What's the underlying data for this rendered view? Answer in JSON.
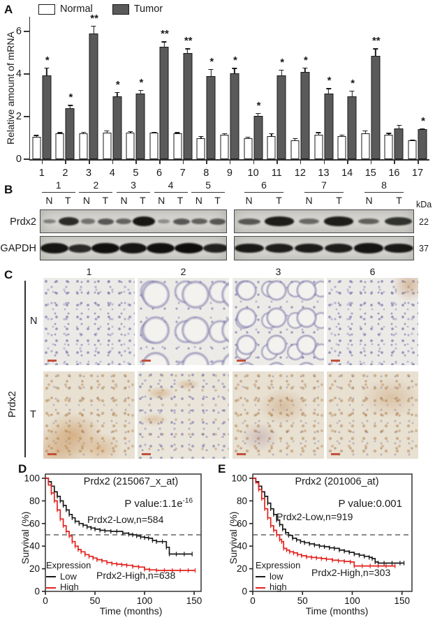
{
  "panel_a": {
    "label": "A",
    "legend": [
      {
        "label": "Normal",
        "fill": "#ffffff"
      },
      {
        "label": "Tumor",
        "fill": "#5a5a5a"
      }
    ],
    "ylabel": "Relative amount of mRNA"
  },
  "panel_b": {
    "label": "B",
    "lane_labels": [
      "N",
      "T"
    ],
    "row_labels": [
      "Prdx2",
      "GAPDH"
    ],
    "kda_header": "kDa",
    "kda_values": [
      "22",
      "37"
    ],
    "groups": [
      {
        "samples": [
          "1",
          "2",
          "3",
          "4",
          "5"
        ],
        "prdx2_band_intensity": [
          0.18,
          0.85,
          0.3,
          0.5,
          0.42,
          1.0,
          0.1,
          0.5,
          0.45,
          0.5
        ],
        "gapdh_band_intensity": [
          0.9,
          0.5,
          0.95,
          0.85,
          0.95,
          1.0,
          0.65,
          0.9,
          0.85,
          0.95
        ]
      },
      {
        "samples": [
          "6",
          "7",
          "8"
        ],
        "prdx2_band_intensity": [
          0.5,
          0.95,
          0.38,
          0.95,
          0.45,
          0.8
        ],
        "gapdh_band_intensity": [
          0.8,
          0.7,
          0.75,
          0.7,
          0.85,
          0.8
        ]
      }
    ]
  },
  "panel_c": {
    "label": "C",
    "columns": [
      "1",
      "2",
      "3",
      "6"
    ],
    "row_labels": [
      "N",
      "T"
    ],
    "side_label": "Prdx2"
  },
  "panel_d": {
    "label": "D",
    "title": "Prdx2 (215067_x_at)",
    "pvalue_main": "P value:1.1e",
    "pvalue_sup": "-16",
    "low_annotation": "Prdx2-Low,n=584",
    "high_annotation": "Prdx2-High,n=638",
    "legend_title": "Expression",
    "legend": [
      {
        "label": "Low",
        "color": "#1a1a1a"
      },
      {
        "label": "High",
        "color": "#e3211c"
      }
    ],
    "ylabel": "Survival (%)",
    "xlabel": "Time (months)"
  },
  "panel_e": {
    "label": "E",
    "title": "Prdx2 (201006_at)",
    "pvalue_main": "P value:0.001",
    "pvalue_sup": "",
    "low_annotation": "Prdx2-Low,n=919",
    "high_annotation": "Prdx2-High,n=303",
    "legend_title": "Expression",
    "legend": [
      {
        "label": "low",
        "color": "#1a1a1a"
      },
      {
        "label": "high",
        "color": "#e3211c"
      }
    ],
    "ylabel": "Survival (%)",
    "xlabel": "Time (months)"
  },
  "chart_data": [
    {
      "id": "A",
      "type": "bar",
      "title": "",
      "ylabel": "Relative amount of mRNA",
      "ylim": [
        0,
        6.7
      ],
      "yticks": [
        0,
        2,
        4,
        6
      ],
      "categories": [
        "1",
        "2",
        "3",
        "4",
        "5",
        "6",
        "7",
        "8",
        "9",
        "10",
        "11",
        "12",
        "13",
        "14",
        "15",
        "16",
        "17"
      ],
      "series": [
        {
          "name": "Normal",
          "color": "#ffffff",
          "values": [
            1.05,
            1.2,
            1.2,
            1.25,
            1.25,
            1.25,
            1.2,
            1.0,
            1.15,
            1.0,
            1.1,
            0.9,
            1.15,
            1.1,
            1.2,
            1.15,
            0.9
          ],
          "errors": [
            0.12,
            0.1,
            0.12,
            0.13,
            0.1,
            0.08,
            0.1,
            0.12,
            0.1,
            0.1,
            0.15,
            0.12,
            0.15,
            0.08,
            0.18,
            0.12,
            0.06
          ]
        },
        {
          "name": "Tumor",
          "color": "#5a5a5a",
          "values": [
            3.95,
            2.4,
            5.9,
            2.95,
            3.1,
            5.3,
            5.0,
            3.9,
            4.05,
            2.05,
            3.95,
            4.1,
            3.1,
            2.95,
            4.85,
            1.45,
            1.4
          ],
          "errors": [
            0.4,
            0.18,
            0.42,
            0.25,
            0.2,
            0.28,
            0.25,
            0.38,
            0.28,
            0.15,
            0.3,
            0.25,
            0.28,
            0.3,
            0.4,
            0.2,
            0.08
          ]
        }
      ],
      "significance": [
        "*",
        "*",
        "**",
        "*",
        "*",
        "**",
        "**",
        "*",
        "*",
        "*",
        "*",
        "*",
        "*",
        "*",
        "**",
        "",
        "*"
      ]
    },
    {
      "id": "D",
      "type": "line",
      "title": "Prdx2 (215067_x_at)",
      "p_value": "1.1e-16",
      "xlabel": "Time (months)",
      "ylabel": "Survival (%)",
      "xlim": [
        0,
        157
      ],
      "ylim": [
        0,
        100
      ],
      "xticks": [
        0,
        50,
        100,
        150
      ],
      "yticks": [
        0,
        20,
        40,
        60,
        80,
        100
      ],
      "reference_line_y": 50,
      "series": [
        {
          "name": "Prdx2-Low",
          "n": 584,
          "color": "#1a1a1a",
          "points": [
            [
              0,
              100
            ],
            [
              3,
              97
            ],
            [
              6,
              93
            ],
            [
              9,
              88
            ],
            [
              12,
              84
            ],
            [
              15,
              80
            ],
            [
              18,
              76
            ],
            [
              21,
              72
            ],
            [
              24,
              68
            ],
            [
              27,
              65
            ],
            [
              30,
              62
            ],
            [
              34,
              60
            ],
            [
              38,
              58.5
            ],
            [
              42,
              57
            ],
            [
              46,
              56
            ],
            [
              50,
              55
            ],
            [
              55,
              54
            ],
            [
              60,
              53.5
            ],
            [
              66,
              53
            ],
            [
              72,
              53
            ],
            [
              78,
              51.5
            ],
            [
              84,
              50.5
            ],
            [
              88,
              50
            ],
            [
              92,
              49
            ],
            [
              96,
              48
            ],
            [
              100,
              47.5
            ],
            [
              104,
              47
            ],
            [
              108,
              45
            ],
            [
              112,
              44
            ],
            [
              118,
              44
            ],
            [
              122,
              39
            ],
            [
              125,
              33
            ],
            [
              132,
              33
            ],
            [
              140,
              33
            ],
            [
              148,
              33
            ]
          ]
        },
        {
          "name": "Prdx2-High",
          "n": 638,
          "color": "#e3211c",
          "points": [
            [
              0,
              100
            ],
            [
              3,
              94
            ],
            [
              6,
              87
            ],
            [
              9,
              80
            ],
            [
              12,
              72
            ],
            [
              15,
              64
            ],
            [
              18,
              58
            ],
            [
              21,
              53
            ],
            [
              24,
              49
            ],
            [
              27,
              44
            ],
            [
              30,
              40
            ],
            [
              33,
              37
            ],
            [
              36,
              35
            ],
            [
              40,
              32.5
            ],
            [
              44,
              31
            ],
            [
              48,
              29.5
            ],
            [
              52,
              28
            ],
            [
              57,
              27
            ],
            [
              62,
              25.5
            ],
            [
              67,
              24.5
            ],
            [
              72,
              24
            ],
            [
              77,
              23.5
            ],
            [
              82,
              23
            ],
            [
              88,
              22
            ],
            [
              94,
              21.5
            ],
            [
              100,
              19.5
            ],
            [
              105,
              19
            ],
            [
              112,
              18.5
            ],
            [
              120,
              18.5
            ],
            [
              128,
              18.5
            ],
            [
              136,
              18.5
            ],
            [
              144,
              18.5
            ],
            [
              151,
              18.5
            ]
          ]
        }
      ]
    },
    {
      "id": "E",
      "type": "line",
      "title": "Prdx2 (201006_at)",
      "p_value": "0.001",
      "xlabel": "Time (months)",
      "ylabel": "Survival (%)",
      "xlim": [
        0,
        160
      ],
      "ylim": [
        0,
        100
      ],
      "xticks": [
        0,
        50,
        100,
        150
      ],
      "yticks": [
        0,
        20,
        40,
        60,
        80,
        100
      ],
      "reference_line_y": 50,
      "series": [
        {
          "name": "Prdx2-Low",
          "n": 919,
          "color": "#1a1a1a",
          "points": [
            [
              0,
              100
            ],
            [
              3,
              97
            ],
            [
              6,
              93
            ],
            [
              9,
              88
            ],
            [
              12,
              84
            ],
            [
              15,
              78
            ],
            [
              18,
              73
            ],
            [
              21,
              68
            ],
            [
              24,
              63
            ],
            [
              27,
              59
            ],
            [
              30,
              55
            ],
            [
              33,
              52
            ],
            [
              36,
              49.5
            ],
            [
              40,
              47
            ],
            [
              44,
              45.5
            ],
            [
              48,
              44
            ],
            [
              52,
              43
            ],
            [
              57,
              42
            ],
            [
              62,
              41
            ],
            [
              67,
              40
            ],
            [
              72,
              39.5
            ],
            [
              77,
              38.5
            ],
            [
              82,
              38
            ],
            [
              87,
              36.5
            ],
            [
              92,
              35.5
            ],
            [
              97,
              34.5
            ],
            [
              102,
              33
            ],
            [
              107,
              32
            ],
            [
              112,
              31
            ],
            [
              117,
              30
            ],
            [
              120,
              29
            ],
            [
              123,
              26
            ],
            [
              126,
              25
            ],
            [
              132,
              25
            ],
            [
              140,
              25
            ],
            [
              148,
              25
            ],
            [
              152,
              25
            ]
          ]
        },
        {
          "name": "Prdx2-High",
          "n": 303,
          "color": "#e3211c",
          "points": [
            [
              0,
              100
            ],
            [
              3,
              96
            ],
            [
              6,
              90
            ],
            [
              9,
              82
            ],
            [
              12,
              73
            ],
            [
              15,
              65
            ],
            [
              18,
              58
            ],
            [
              21,
              54
            ],
            [
              24,
              50
            ],
            [
              27,
              46
            ],
            [
              29,
              44
            ],
            [
              31,
              38
            ],
            [
              34,
              36.5
            ],
            [
              37,
              35
            ],
            [
              41,
              34
            ],
            [
              45,
              32.5
            ],
            [
              49,
              31.5
            ],
            [
              54,
              30.5
            ],
            [
              59,
              30
            ],
            [
              64,
              29.5
            ],
            [
              69,
              29
            ],
            [
              74,
              28.5
            ],
            [
              80,
              27.5
            ],
            [
              86,
              27
            ],
            [
              92,
              26.5
            ],
            [
              98,
              26
            ],
            [
              102,
              22.5
            ],
            [
              110,
              22.5
            ],
            [
              118,
              22.5
            ],
            [
              126,
              22.5
            ],
            [
              134,
              22.5
            ],
            [
              143,
              22.5
            ]
          ]
        }
      ]
    }
  ]
}
